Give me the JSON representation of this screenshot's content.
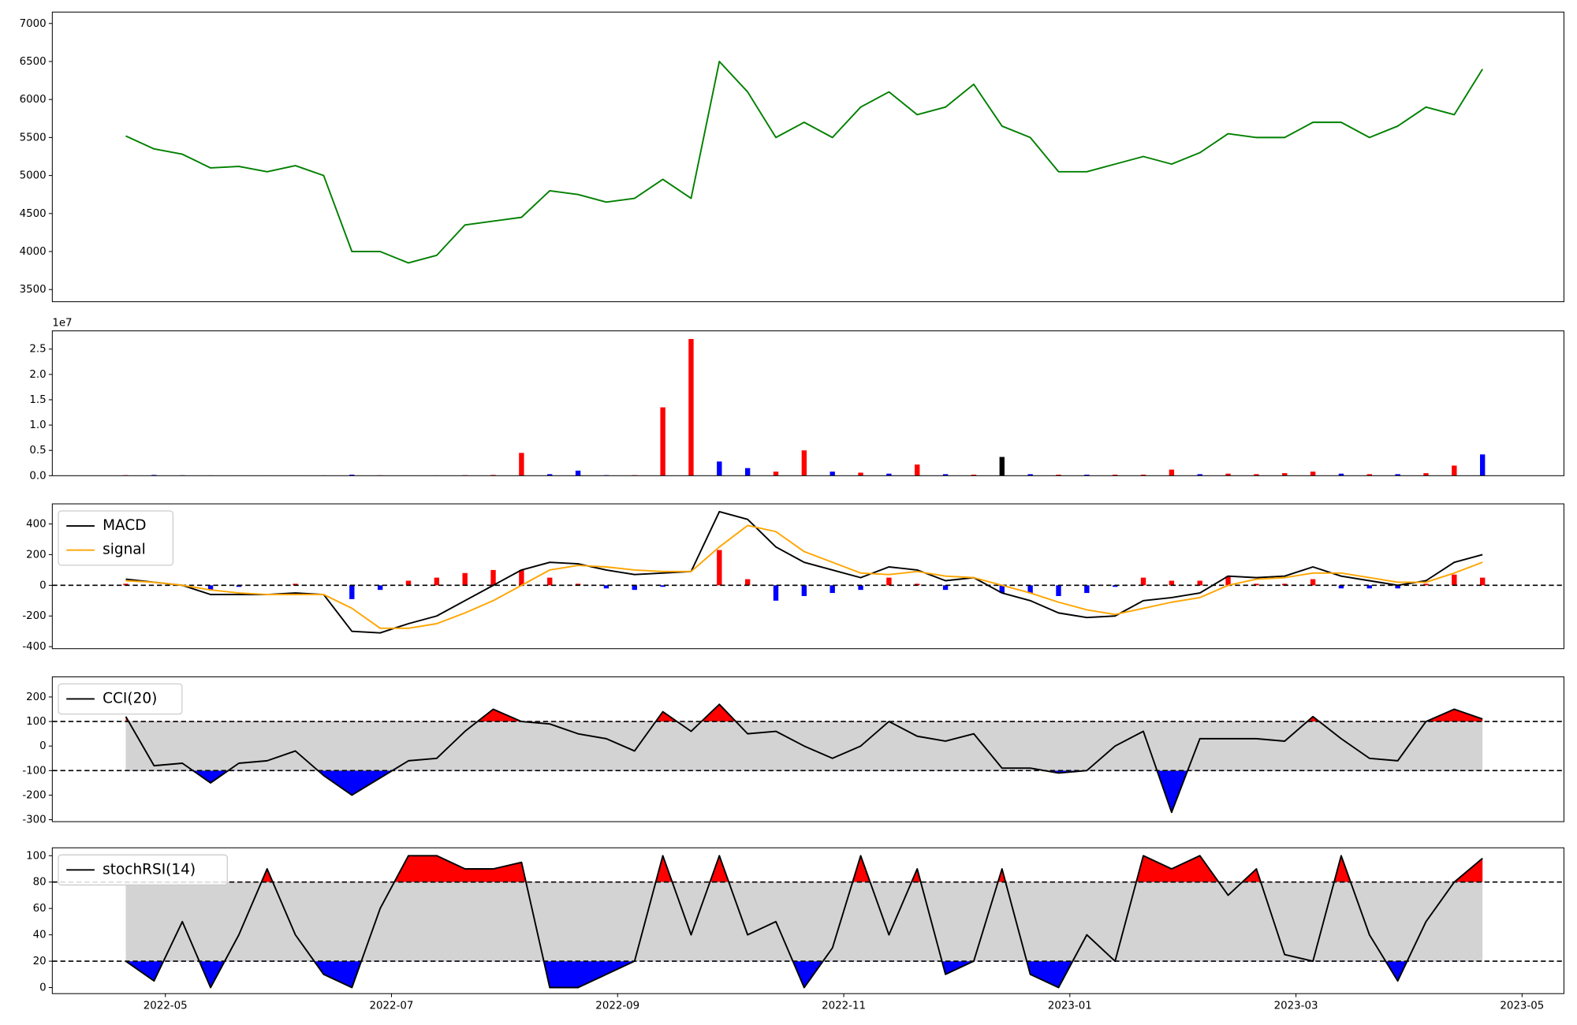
{
  "chart_data": [
    {
      "type": "line",
      "x": [
        0.65,
        0.9,
        1.15,
        1.4,
        1.65,
        1.9,
        2.15,
        2.4,
        2.65,
        2.9,
        3.15,
        3.4,
        3.65,
        3.9,
        4.15,
        4.4,
        4.65,
        4.9,
        5.15,
        5.4,
        5.65,
        5.9,
        6.15,
        6.4,
        6.65,
        6.9,
        7.15,
        7.4,
        7.65,
        7.9,
        8.15,
        8.4,
        8.65,
        8.9,
        9.15,
        9.4,
        9.65,
        9.9,
        10.15,
        10.4,
        10.65,
        10.9,
        11.15,
        11.4,
        11.65,
        11.9,
        12.15,
        12.4,
        12.65
      ],
      "series": [
        {
          "color": "#008000",
          "values": [
            5520,
            5350,
            5280,
            5100,
            5120,
            5050,
            5130,
            5000,
            4000,
            4000,
            3850,
            3950,
            4350,
            4400,
            4450,
            4800,
            4750,
            4650,
            4700,
            4950,
            4700,
            6500,
            6100,
            5500,
            5700,
            5500,
            5900,
            6100,
            5800,
            5900,
            6200,
            5650,
            5500,
            5050,
            5050,
            5150,
            5250,
            5150,
            5300,
            5550,
            5500,
            5500,
            5700,
            5700,
            5500,
            5650,
            5900,
            5800,
            6400
          ]
        }
      ],
      "ylim": [
        3340,
        7150
      ],
      "yticks": [
        3500,
        4000,
        4500,
        5000,
        5500,
        6000,
        6500,
        7000
      ]
    },
    {
      "type": "bar",
      "offset_label": "1e7",
      "values": [
        100000,
        150000,
        80000,
        60000,
        50000,
        50000,
        50000,
        60000,
        200000,
        80000,
        50000,
        60000,
        100000,
        150000,
        4500000,
        300000,
        1000000,
        100000,
        100000,
        13500000,
        27000000,
        2800000,
        1500000,
        800000,
        5000000,
        800000,
        600000,
        400000,
        2200000,
        300000,
        200000,
        3700000,
        300000,
        200000,
        200000,
        200000,
        200000,
        1200000,
        300000,
        400000,
        300000,
        500000,
        800000,
        400000,
        300000,
        300000,
        500000,
        2000000,
        4200000
      ],
      "colors": [
        "#ff0000",
        "#0000ff",
        "#0000ff",
        "#0000ff",
        "#ff0000",
        "#0000ff",
        "#ff0000",
        "#0000ff",
        "#0000ff",
        "#ff0000",
        "#0000ff",
        "#ff0000",
        "#ff0000",
        "#ff0000",
        "#ff0000",
        "#0000ff",
        "#0000ff",
        "#0000ff",
        "#ff0000",
        "#ff0000",
        "#ff0000",
        "#0000ff",
        "#0000ff",
        "#ff0000",
        "#ff0000",
        "#0000ff",
        "#ff0000",
        "#0000ff",
        "#ff0000",
        "#0000ff",
        "#ff0000",
        "#000000",
        "#0000ff",
        "#ff0000",
        "#0000ff",
        "#ff0000",
        "#ff0000",
        "#ff0000",
        "#0000ff",
        "#ff0000",
        "#ff0000",
        "#ff0000",
        "#ff0000",
        "#0000ff",
        "#ff0000",
        "#0000ff",
        "#ff0000",
        "#ff0000",
        "#0000ff"
      ],
      "ylim": [
        0,
        28600000
      ],
      "yticks": [
        {
          "value": 0,
          "label": "0.0"
        },
        {
          "value": 5000000,
          "label": "0.5"
        },
        {
          "value": 10000000,
          "label": "1.0"
        },
        {
          "value": 15000000,
          "label": "1.5"
        },
        {
          "value": 20000000,
          "label": "2.0"
        },
        {
          "value": 25000000,
          "label": "2.5"
        }
      ]
    },
    {
      "type": "macd",
      "legend": "upper left",
      "baseline": 0,
      "series": [
        {
          "name": "MACD",
          "color": "#000000",
          "values": [
            40,
            20,
            0,
            -60,
            -60,
            -60,
            -50,
            -60,
            -300,
            -310,
            -250,
            -200,
            -100,
            0,
            100,
            150,
            140,
            100,
            70,
            80,
            90,
            480,
            430,
            250,
            150,
            100,
            50,
            120,
            100,
            30,
            50,
            -50,
            -100,
            -180,
            -210,
            -200,
            -100,
            -80,
            -50,
            60,
            50,
            60,
            120,
            60,
            30,
            0,
            30,
            150,
            200
          ]
        },
        {
          "name": "signal",
          "color": "#ffa500",
          "values": [
            30,
            20,
            0,
            -30,
            -50,
            -60,
            -60,
            -60,
            -150,
            -280,
            -280,
            -250,
            -180,
            -100,
            0,
            100,
            130,
            120,
            100,
            90,
            90,
            250,
            390,
            350,
            220,
            150,
            80,
            70,
            90,
            60,
            50,
            0,
            -50,
            -110,
            -160,
            -190,
            -150,
            -110,
            -80,
            0,
            40,
            50,
            80,
            80,
            50,
            20,
            20,
            80,
            150
          ]
        }
      ],
      "histogram": {
        "up_color": "#ff0000",
        "down_color": "#0000ff",
        "values": [
          10,
          0,
          0,
          -30,
          -10,
          0,
          10,
          0,
          -90,
          -30,
          30,
          50,
          80,
          100,
          100,
          50,
          10,
          -20,
          -30,
          -10,
          0,
          230,
          40,
          -100,
          -70,
          -50,
          -30,
          50,
          10,
          -30,
          0,
          -50,
          -50,
          -70,
          -50,
          -10,
          50,
          30,
          30,
          60,
          10,
          10,
          40,
          -20,
          -20,
          -20,
          10,
          70,
          50
        ]
      },
      "ylim": [
        -413,
        531
      ],
      "yticks": [
        -400,
        -200,
        0,
        200,
        400
      ]
    },
    {
      "type": "oscillator",
      "legend": "upper left",
      "upper": 100,
      "lower": -100,
      "band_color": "#d3d3d3",
      "above_color": "#ff0000",
      "below_color": "#0000ff",
      "series": [
        {
          "name": "CCI(20)",
          "color": "#000000",
          "values": [
            120,
            -80,
            -70,
            -150,
            -70,
            -60,
            -20,
            -120,
            -200,
            -130,
            -60,
            -50,
            60,
            150,
            100,
            90,
            50,
            30,
            -20,
            140,
            60,
            170,
            50,
            60,
            0,
            -50,
            0,
            100,
            40,
            20,
            50,
            -90,
            -90,
            -110,
            -100,
            0,
            60,
            -270,
            30,
            30,
            30,
            20,
            120,
            30,
            -50,
            -60,
            100,
            150,
            110
          ]
        }
      ],
      "ylim": [
        -308,
        282
      ],
      "yticks": [
        -300,
        -200,
        -100,
        0,
        100,
        200
      ]
    },
    {
      "type": "oscillator",
      "legend": "upper left",
      "upper": 80,
      "lower": 20,
      "band_color": "#d3d3d3",
      "above_color": "#ff0000",
      "below_color": "#0000ff",
      "series": [
        {
          "name": "stochRSI(14)",
          "color": "#000000",
          "values": [
            20,
            5,
            50,
            0,
            40,
            90,
            40,
            10,
            0,
            60,
            100,
            100,
            90,
            90,
            95,
            0,
            0,
            10,
            20,
            100,
            40,
            100,
            40,
            50,
            0,
            30,
            100,
            40,
            90,
            10,
            20,
            90,
            10,
            0,
            40,
            20,
            100,
            90,
            100,
            70,
            90,
            25,
            20,
            100,
            40,
            5,
            50,
            80,
            98
          ]
        }
      ],
      "ylim": [
        -4.6,
        106
      ],
      "yticks": [
        0,
        20,
        40,
        60,
        80,
        100
      ],
      "xlim": [
        0,
        13.37
      ],
      "xticks": [
        {
          "value": 1,
          "label": "2022-05"
        },
        {
          "value": 3,
          "label": "2022-07"
        },
        {
          "value": 5,
          "label": "2022-09"
        },
        {
          "value": 7,
          "label": "2022-11"
        },
        {
          "value": 9,
          "label": "2023-01"
        },
        {
          "value": 11,
          "label": "2023-03"
        },
        {
          "value": 13,
          "label": "2023-05"
        }
      ]
    }
  ]
}
